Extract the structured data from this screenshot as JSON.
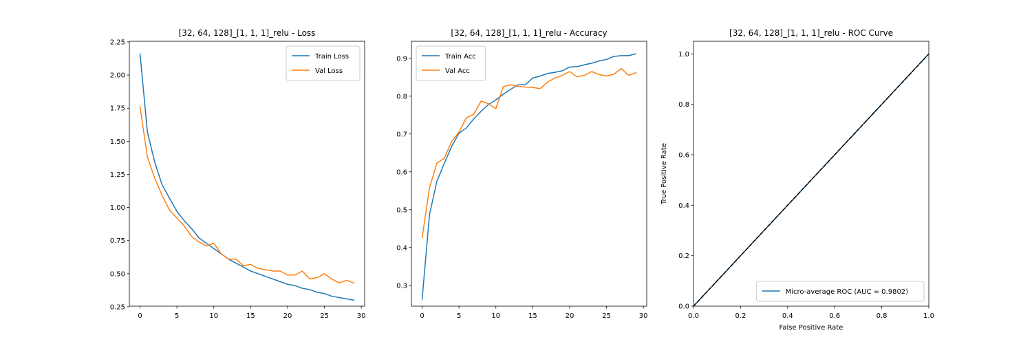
{
  "chart_data": [
    {
      "type": "line",
      "title": "[32, 64, 128]_[1, 1, 1]_relu - Loss",
      "xlabel": "",
      "ylabel": "",
      "xlim": [
        -1.45,
        30.45
      ],
      "ylim": [
        0.255,
        2.255
      ],
      "xticks": [
        0,
        5,
        10,
        15,
        20,
        25,
        30
      ],
      "yticks": [
        0.25,
        0.5,
        0.75,
        1.0,
        1.25,
        1.5,
        1.75,
        2.0,
        2.25
      ],
      "ytick_labels": [
        "0.25",
        "0.50",
        "0.75",
        "1.00",
        "1.25",
        "1.50",
        "1.75",
        "2.00",
        "2.25"
      ],
      "legend": "top-right",
      "x": [
        0,
        1,
        2,
        3,
        4,
        5,
        6,
        7,
        8,
        9,
        10,
        11,
        12,
        13,
        14,
        15,
        16,
        17,
        18,
        19,
        20,
        21,
        22,
        23,
        24,
        25,
        26,
        27,
        28,
        29
      ],
      "series": [
        {
          "name": "Train Loss",
          "color": "#1f77b4",
          "values": [
            2.16,
            1.57,
            1.34,
            1.17,
            1.07,
            0.97,
            0.9,
            0.84,
            0.77,
            0.73,
            0.69,
            0.65,
            0.61,
            0.58,
            0.55,
            0.52,
            0.5,
            0.48,
            0.46,
            0.44,
            0.42,
            0.41,
            0.39,
            0.38,
            0.36,
            0.35,
            0.33,
            0.32,
            0.31,
            0.3
          ]
        },
        {
          "name": "Val Loss",
          "color": "#ff7f0e",
          "values": [
            1.76,
            1.38,
            1.22,
            1.09,
            0.98,
            0.92,
            0.86,
            0.78,
            0.74,
            0.71,
            0.73,
            0.65,
            0.61,
            0.61,
            0.56,
            0.57,
            0.54,
            0.53,
            0.52,
            0.52,
            0.49,
            0.49,
            0.52,
            0.46,
            0.47,
            0.5,
            0.46,
            0.43,
            0.45,
            0.43
          ]
        }
      ]
    },
    {
      "type": "line",
      "title": "[32, 64, 128]_[1, 1, 1]_relu - Accuracy",
      "xlabel": "",
      "ylabel": "",
      "xlim": [
        -1.45,
        30.45
      ],
      "ylim": [
        0.245,
        0.945
      ],
      "xticks": [
        0,
        5,
        10,
        15,
        20,
        25,
        30
      ],
      "yticks": [
        0.3,
        0.4,
        0.5,
        0.6,
        0.7,
        0.8,
        0.9
      ],
      "ytick_labels": [
        "0.3",
        "0.4",
        "0.5",
        "0.6",
        "0.7",
        "0.8",
        "0.9"
      ],
      "legend": "top-left",
      "x": [
        0,
        1,
        2,
        3,
        4,
        5,
        6,
        7,
        8,
        9,
        10,
        11,
        12,
        13,
        14,
        15,
        16,
        17,
        18,
        19,
        20,
        21,
        22,
        23,
        24,
        25,
        26,
        27,
        28,
        29
      ],
      "series": [
        {
          "name": "Train Acc",
          "color": "#1f77b4",
          "values": [
            0.263,
            0.487,
            0.575,
            0.622,
            0.667,
            0.702,
            0.716,
            0.74,
            0.76,
            0.778,
            0.79,
            0.805,
            0.818,
            0.83,
            0.83,
            0.848,
            0.853,
            0.86,
            0.863,
            0.867,
            0.877,
            0.878,
            0.883,
            0.887,
            0.893,
            0.897,
            0.905,
            0.907,
            0.907,
            0.912
          ]
        },
        {
          "name": "Val Acc",
          "color": "#ff7f0e",
          "values": [
            0.426,
            0.558,
            0.623,
            0.636,
            0.68,
            0.705,
            0.743,
            0.752,
            0.787,
            0.78,
            0.767,
            0.825,
            0.83,
            0.826,
            0.824,
            0.823,
            0.82,
            0.837,
            0.848,
            0.855,
            0.865,
            0.851,
            0.855,
            0.865,
            0.857,
            0.853,
            0.858,
            0.873,
            0.855,
            0.862
          ]
        }
      ]
    },
    {
      "type": "line",
      "title": "[32, 64, 128]_[1, 1, 1]_relu - ROC Curve",
      "xlabel": "False Positive Rate",
      "ylabel": "True Positive Rate",
      "xlim": [
        0.0,
        1.0
      ],
      "ylim": [
        0.0,
        1.05
      ],
      "xticks": [
        0.0,
        0.2,
        0.4,
        0.6,
        0.8,
        1.0
      ],
      "xtick_labels": [
        "0.0",
        "0.2",
        "0.4",
        "0.6",
        "0.8",
        "1.0"
      ],
      "yticks": [
        0.0,
        0.2,
        0.4,
        0.6,
        0.8,
        1.0
      ],
      "ytick_labels": [
        "0.0",
        "0.2",
        "0.4",
        "0.6",
        "0.8",
        "1.0"
      ],
      "legend": "lower-right",
      "series": [
        {
          "name": "Micro-average ROC (AUC = 0.9802)",
          "color": "#1f77b4",
          "style": "solid",
          "x": [
            0.0,
            1.0
          ],
          "values": [
            0.0,
            1.0
          ]
        },
        {
          "name": "",
          "color": "#000000",
          "style": "dashed",
          "x": [
            0.0,
            1.0
          ],
          "values": [
            0.0,
            1.0
          ]
        }
      ]
    }
  ]
}
